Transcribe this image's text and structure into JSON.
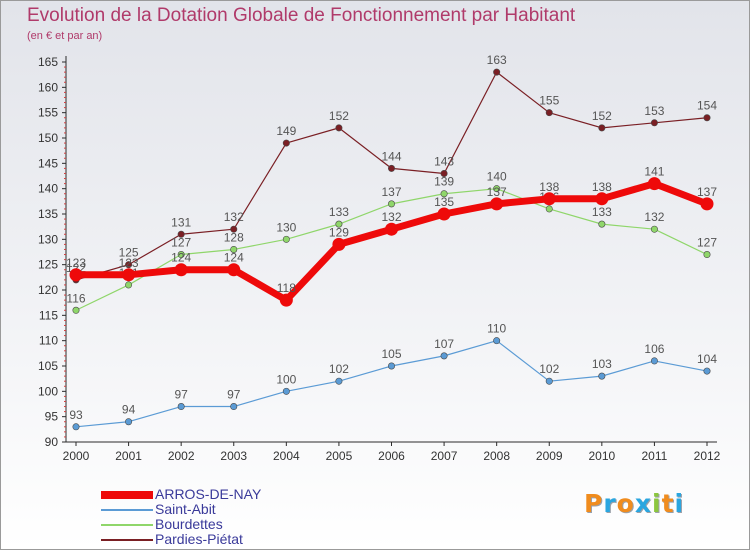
{
  "chart_data": {
    "type": "line",
    "title": "Evolution de la Dotation Globale de Fonctionnement par Habitant",
    "subtitle": "(en € et par an)",
    "x": [
      "2000",
      "2001",
      "2002",
      "2003",
      "2004",
      "2005",
      "2006",
      "2007",
      "2008",
      "2009",
      "2010",
      "2011",
      "2012"
    ],
    "ylim": [
      90,
      165
    ],
    "ytick_step": 5,
    "grid": false,
    "legend_position": "bottom-left",
    "series": [
      {
        "name": "Pardies-Piétat",
        "color": "#7a1f24",
        "values": [
          122,
          125,
          131,
          132,
          149,
          152,
          144,
          143,
          163,
          155,
          152,
          153,
          154
        ]
      },
      {
        "name": "Bourdettes",
        "color": "#8fd66a",
        "values": [
          116,
          121,
          127,
          128,
          130,
          133,
          137,
          139,
          140,
          136,
          133,
          132,
          127
        ]
      },
      {
        "name": "Saint-Abit",
        "color": "#5b9bd5",
        "values": [
          93,
          94,
          97,
          97,
          100,
          102,
          105,
          107,
          110,
          102,
          103,
          106,
          104
        ]
      },
      {
        "name": "ARROS-DE-NAY",
        "color": "#ee0a0a",
        "values": [
          123,
          123,
          124,
          124,
          118,
          129,
          132,
          135,
          137,
          138,
          138,
          141,
          137
        ]
      }
    ],
    "legend_order": [
      "ARROS-DE-NAY",
      "Saint-Abit",
      "Bourdettes",
      "Pardies-Piétat"
    ],
    "axis_color": "#2b2b2b",
    "label_color": "#555555"
  },
  "brand": {
    "letters": [
      "P",
      "r",
      "o",
      "x",
      "i",
      "t",
      "i"
    ],
    "colors": [
      "#f08c1e",
      "#2aa6e0",
      "#f08c1e",
      "#2aa6e0",
      "#8cc63f",
      "#f08c1e",
      "#2aa6e0"
    ]
  }
}
